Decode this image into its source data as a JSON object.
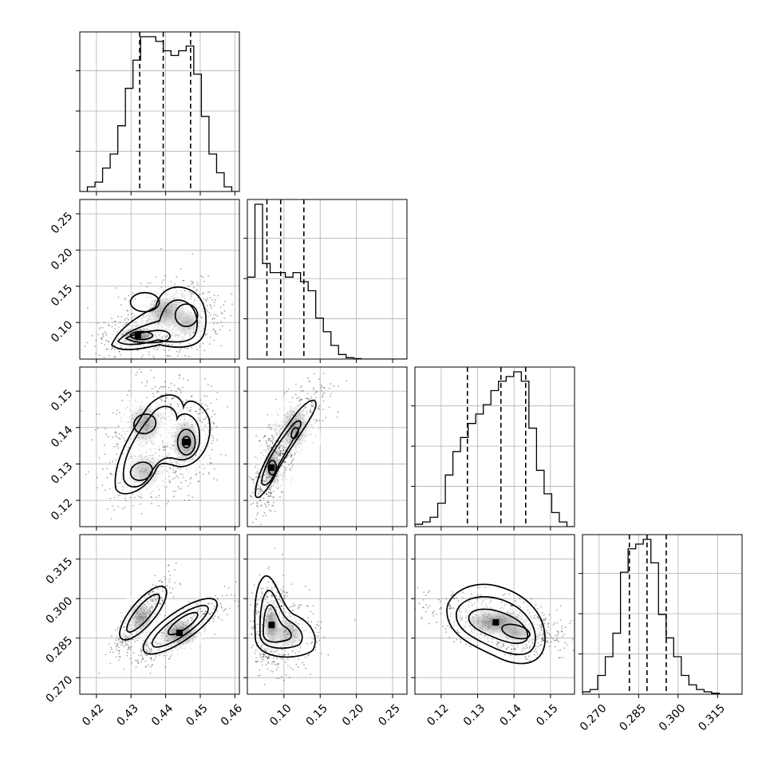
{
  "chart_data": {
    "type": "corner",
    "parameters": 4,
    "grid": true,
    "quantile_lines": "dashed",
    "ticks": {
      "p0": [
        "0.42",
        "0.43",
        "0.44",
        "0.45",
        "0.46"
      ],
      "p1": [
        "0.10",
        "0.15",
        "0.20",
        "0.25"
      ],
      "p2": [
        "0.12",
        "0.13",
        "0.14",
        "0.15"
      ],
      "p3": [
        "0.270",
        "0.285",
        "0.300",
        "0.315"
      ]
    },
    "ranges": {
      "p0": [
        0.4152,
        0.4613
      ],
      "p1": [
        0.0495,
        0.2698
      ],
      "p2": [
        0.1128,
        0.1566
      ],
      "p3": [
        0.2637,
        0.3243
      ]
    },
    "quantiles": {
      "p0": [
        0.4325,
        0.4393,
        0.4472
      ],
      "p1": [
        0.0765,
        0.0955,
        0.1275
      ],
      "p2": [
        0.1272,
        0.1364,
        0.1432
      ],
      "p3": [
        0.2815,
        0.2882,
        0.2955
      ]
    },
    "histograms": {
      "p0": [
        0,
        1,
        2,
        5,
        8,
        14,
        22,
        28,
        33,
        33,
        32,
        30,
        29,
        30,
        31,
        25,
        16,
        8,
        4,
        1,
        0
      ],
      "p1": [
        18,
        34,
        21,
        19,
        19,
        18,
        19,
        17,
        15,
        9,
        6,
        3,
        1,
        0.3,
        0.1,
        0,
        0,
        0,
        0,
        0,
        0
      ],
      "p2": [
        0.5,
        1,
        2,
        5,
        11,
        16,
        19,
        22,
        24,
        26,
        29,
        31,
        32,
        33,
        31,
        21,
        12,
        7,
        3,
        1,
        0
      ],
      "p3": [
        0.5,
        1,
        4,
        8,
        13,
        26,
        31,
        32,
        33,
        28,
        17,
        12,
        8,
        4,
        2,
        1,
        0.5,
        0.2,
        0,
        0,
        0
      ]
    }
  }
}
